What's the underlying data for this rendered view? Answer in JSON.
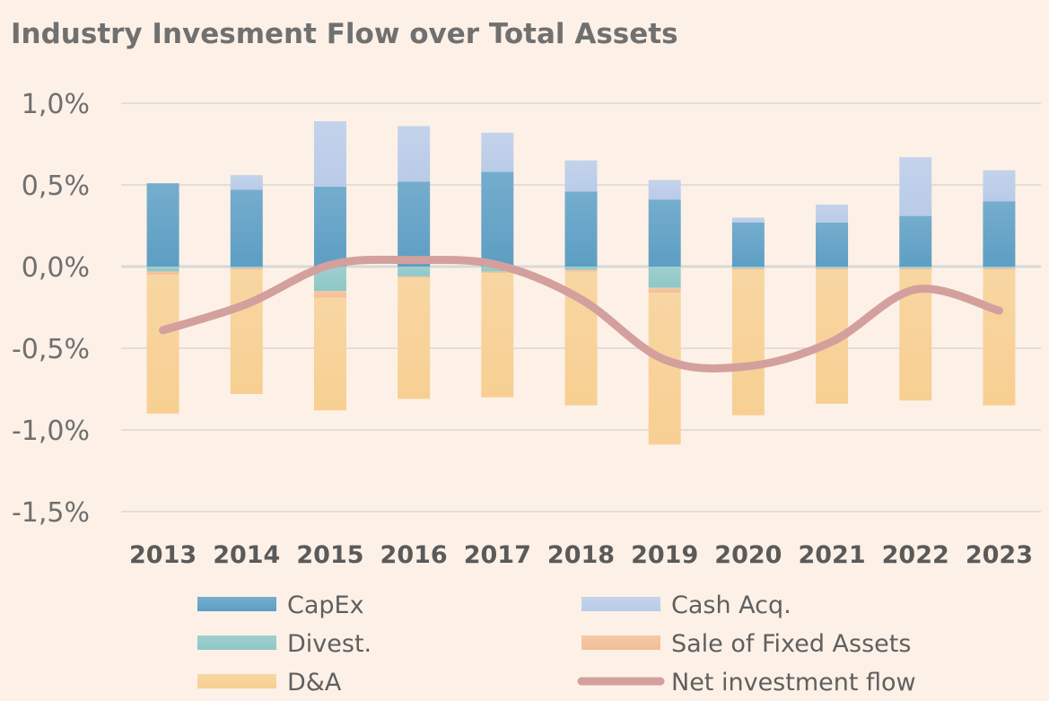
{
  "chart_data": {
    "type": "bar",
    "title": "Industry Invesment Flow over Total Assets",
    "categories": [
      "2013",
      "2014",
      "2015",
      "2016",
      "2017",
      "2018",
      "2019",
      "2020",
      "2021",
      "2022",
      "2023"
    ],
    "ylim": [
      -1.5,
      1.0
    ],
    "yticks": [
      1.0,
      0.5,
      0.0,
      -0.5,
      -1.0,
      -1.5
    ],
    "ytick_labels": [
      "1,0%",
      "0,5%",
      "0,0%",
      "-0,5%",
      "-1,0%",
      "-1,5%"
    ],
    "grid": true,
    "legend": "bottom",
    "stacked": true,
    "series": [
      {
        "name": "CapEx",
        "color": "#5d9ec4",
        "values": [
          0.51,
          0.47,
          0.49,
          0.52,
          0.58,
          0.46,
          0.41,
          0.27,
          0.27,
          0.31,
          0.4
        ]
      },
      {
        "name": "Cash Acq.",
        "color": "#b9cbe8",
        "values": [
          0.0,
          0.09,
          0.4,
          0.34,
          0.24,
          0.19,
          0.12,
          0.03,
          0.11,
          0.36,
          0.19
        ]
      },
      {
        "name": "Divest.",
        "color": "#8ec7c6",
        "values": [
          -0.03,
          -0.01,
          -0.15,
          -0.06,
          -0.03,
          -0.02,
          -0.13,
          -0.01,
          -0.01,
          -0.01,
          -0.01
        ]
      },
      {
        "name": "Sale of Fixed Assets",
        "color": "#f3be95",
        "values": [
          -0.02,
          -0.01,
          -0.04,
          -0.01,
          -0.01,
          -0.01,
          -0.03,
          -0.01,
          -0.01,
          -0.01,
          -0.01
        ]
      },
      {
        "name": "D&A",
        "color": "#f7cf92",
        "values": [
          -0.85,
          -0.76,
          -0.69,
          -0.74,
          -0.76,
          -0.82,
          -0.93,
          -0.89,
          -0.82,
          -0.8,
          -0.83
        ]
      },
      {
        "name": "Net investment flow",
        "type": "line",
        "color": "#d3a09d",
        "values": [
          -0.39,
          -0.23,
          0.01,
          0.04,
          0.01,
          -0.2,
          -0.57,
          -0.61,
          -0.46,
          -0.14,
          -0.27
        ]
      }
    ]
  }
}
